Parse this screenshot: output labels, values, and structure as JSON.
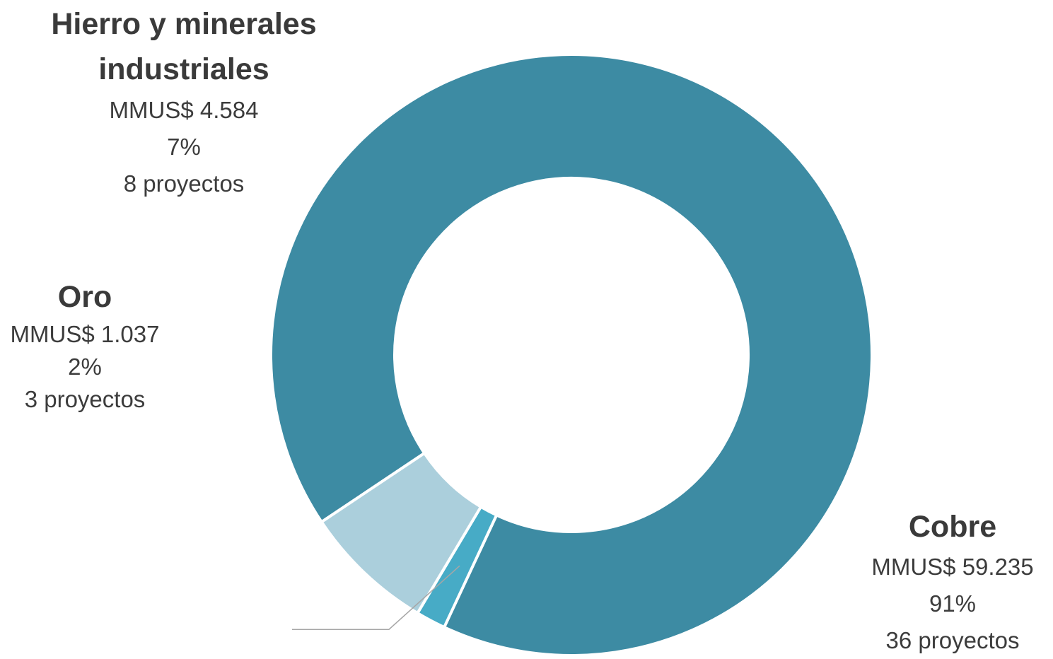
{
  "chart_data": {
    "type": "pie",
    "variant": "donut",
    "slices": [
      {
        "label": "Cobre",
        "value": 59235,
        "value_label": "MMUS$ 59.235",
        "percent_label": "91%",
        "projects_label": "36 proyectos",
        "color": "#3d8ba3"
      },
      {
        "label": "Oro",
        "value": 1037,
        "value_label": "MMUS$ 1.037",
        "percent_label": "2%",
        "projects_label": "3 proyectos",
        "color": "#47abc6"
      },
      {
        "label": "Hierro y minerales industriales",
        "value": 4584,
        "value_label": "MMUS$ 4.584",
        "percent_label": "7%",
        "projects_label": "8 proyectos",
        "color": "#abcfdc"
      }
    ],
    "legend": "none",
    "title": ""
  }
}
